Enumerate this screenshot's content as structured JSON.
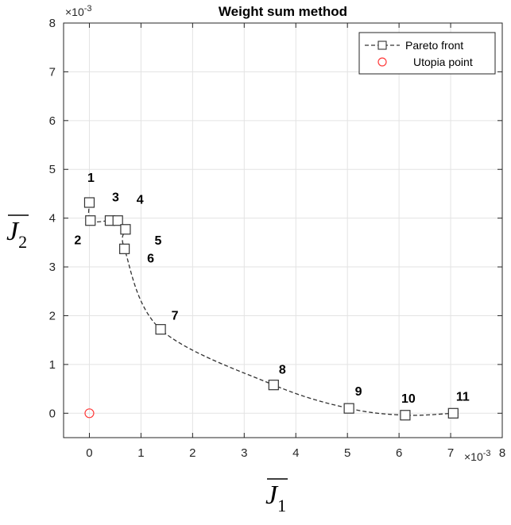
{
  "chart_data": {
    "type": "line",
    "title": "Weight sum method",
    "xlabel": "J",
    "xlabel_subscript": "1",
    "ylabel": "J",
    "ylabel_subscript": "2",
    "x_exponent": "×10",
    "x_exponent_power": "-3",
    "y_exponent": "×10",
    "y_exponent_power": "-3",
    "xlim": [
      -0.5,
      8
    ],
    "ylim": [
      -0.5,
      8
    ],
    "xticks": [
      0,
      1,
      2,
      3,
      4,
      5,
      6,
      7,
      8
    ],
    "yticks": [
      0,
      1,
      2,
      3,
      4,
      5,
      6,
      7,
      8
    ],
    "xtick_labels": [
      "0",
      "1",
      "2",
      "3",
      "4",
      "5",
      "6",
      "7",
      "8"
    ],
    "ytick_labels": [
      "0",
      "1",
      "2",
      "3",
      "4",
      "5",
      "6",
      "7",
      "8"
    ],
    "grid": true,
    "legend_position": "top-right",
    "series": [
      {
        "name": "Pareto front",
        "style": "dashed-square",
        "color": "#333333",
        "x": [
          0.0,
          0.02,
          0.4,
          0.55,
          0.7,
          0.68,
          1.38,
          3.57,
          5.03,
          6.12,
          7.05
        ],
        "y": [
          4.32,
          3.95,
          3.95,
          3.95,
          3.77,
          3.37,
          1.72,
          0.58,
          0.1,
          -0.04,
          0.0
        ],
        "labels": [
          "1",
          "2",
          "3",
          "4",
          "5",
          "6",
          "7",
          "8",
          "9",
          "10",
          "11"
        ]
      },
      {
        "name": "Utopia point",
        "style": "circle",
        "color": "#ff3b3b",
        "x": [
          0.0
        ],
        "y": [
          0.0
        ]
      }
    ]
  }
}
